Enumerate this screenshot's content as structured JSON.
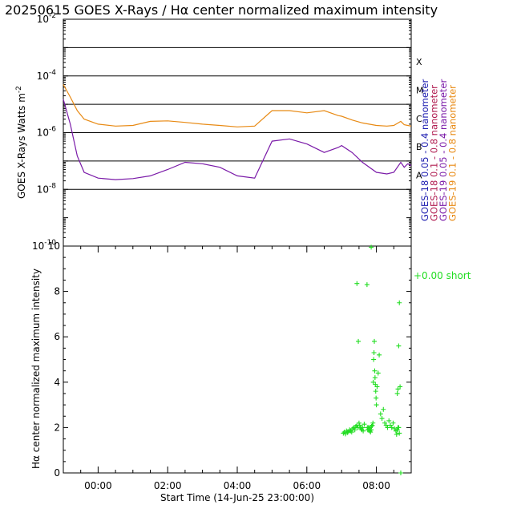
{
  "title": "20250615 GOES X-Rays / Hα center normalized maximum intensity",
  "chart_data": [
    {
      "type": "line",
      "name": "goes-xray",
      "ylabel": "GOES X-Rays Watts m",
      "ylabel_sup": "-2",
      "yscale": "log",
      "ylim": [
        1e-10,
        0.01
      ],
      "ytick_mantissa": "10",
      "ytick_exponents": [
        "-10",
        "-8",
        "-6",
        "-4",
        "-2"
      ],
      "xlim_hours_after_start": [
        0,
        10
      ],
      "flare_class_thresholds": [
        1e-08,
        1e-07,
        1e-06,
        1e-05,
        0.0001,
        0.001
      ],
      "flare_classes": [
        {
          "label": "A",
          "value": 3.16e-08
        },
        {
          "label": "B",
          "value": 3.16e-07
        },
        {
          "label": "C",
          "value": 3.16e-06
        },
        {
          "label": "M",
          "value": 3.16e-05
        },
        {
          "label": "X",
          "value": 0.000316
        }
      ],
      "legend": [
        {
          "label": "GOES-18  0.05 - 0.4 nanometer",
          "color": "#1c1cb0"
        },
        {
          "label": "GOES-18  0.1  - 0.8 nanometer",
          "color": "#b01c50"
        },
        {
          "label": "GOES-19  0.05 - 0.4 nanometer",
          "color": "#7a1aa8"
        },
        {
          "label": "GOES-19  0.1  - 0.8 nanometer",
          "color": "#e88a14"
        }
      ],
      "series": [
        {
          "name": "GOES-19 0.1-0.8 nm",
          "color": "#e88a14",
          "x": [
            0,
            0.2,
            0.4,
            0.6,
            1.0,
            1.5,
            2.0,
            2.5,
            3.0,
            3.5,
            4.0,
            4.5,
            5.0,
            5.5,
            6.0,
            6.5,
            7.0,
            7.5,
            7.9,
            8.0,
            8.3,
            8.6,
            9.0,
            9.3,
            9.5,
            9.7,
            9.8,
            9.9,
            10.0
          ],
          "y": [
            5e-05,
            1.8e-05,
            6e-06,
            3e-06,
            2e-06,
            1.7e-06,
            1.8e-06,
            2.5e-06,
            2.6e-06,
            2.3e-06,
            2e-06,
            1.8e-06,
            1.6e-06,
            1.7e-06,
            6e-06,
            6e-06,
            5e-06,
            6e-06,
            4e-06,
            3.8e-06,
            2.8e-06,
            2.2e-06,
            1.8e-06,
            1.7e-06,
            1.8e-06,
            2.5e-06,
            1.9e-06,
            1.8e-06,
            1.7e-06
          ]
        },
        {
          "name": "GOES-19 0.05-0.4 nm",
          "color": "#7a1aa8",
          "x": [
            0,
            0.2,
            0.4,
            0.6,
            1.0,
            1.5,
            2.0,
            2.5,
            3.0,
            3.5,
            4.0,
            4.5,
            5.0,
            5.5,
            6.0,
            6.5,
            7.0,
            7.5,
            7.9,
            8.0,
            8.3,
            8.6,
            9.0,
            9.3,
            9.5,
            9.7,
            9.8,
            9.9,
            10.0
          ],
          "y": [
            1.5e-05,
            2e-06,
            1.5e-07,
            4e-08,
            2.5e-08,
            2.2e-08,
            2.4e-08,
            3e-08,
            5e-08,
            9e-08,
            8e-08,
            6e-08,
            3e-08,
            2.5e-08,
            5e-07,
            6e-07,
            4e-07,
            2e-07,
            3e-07,
            3.5e-07,
            2e-07,
            9e-08,
            4e-08,
            3.5e-08,
            4e-08,
            9e-08,
            6e-08,
            8e-08,
            7e-08
          ]
        }
      ]
    },
    {
      "type": "scatter",
      "name": "halpha",
      "xlabel": "Start Time (14-Jun-25 23:00:00)",
      "ylabel": "Hα center normalized maximum intensity",
      "ylim": [
        0,
        10
      ],
      "yticks": [
        "0",
        "2",
        "4",
        "6",
        "8",
        "10"
      ],
      "xticks": [
        "00:00",
        "02:00",
        "04:00",
        "06:00",
        "08:00"
      ],
      "xtick_hours_after_start": [
        1,
        3,
        5,
        7,
        9
      ],
      "annotation": "+0.00 short",
      "marker_color": "#22dd22",
      "points_x": [
        8.05,
        8.08,
        8.11,
        8.14,
        8.17,
        8.2,
        8.23,
        8.26,
        8.29,
        8.32,
        8.35,
        8.38,
        8.41,
        8.44,
        8.47,
        8.5,
        8.52,
        8.54,
        8.56,
        8.58,
        8.6,
        8.62,
        8.65,
        8.44,
        8.48,
        8.73,
        8.75,
        8.77,
        8.79,
        8.81,
        8.83,
        8.85,
        8.74,
        8.78,
        8.82,
        8.86,
        8.88,
        8.9,
        8.91,
        8.92,
        8.93,
        8.94,
        8.95,
        8.96,
        8.97,
        8.98,
        8.99,
        9.0,
        9.02,
        9.05,
        9.08,
        9.12,
        9.16,
        9.2,
        9.24,
        9.28,
        9.32,
        9.36,
        9.4,
        9.44,
        9.48,
        9.52,
        9.56,
        9.58,
        9.6,
        9.62,
        9.64,
        9.66,
        9.68,
        9.6,
        9.62,
        9.64,
        9.66,
        9.7,
        8.85
      ],
      "points_y": [
        1.75,
        1.8,
        1.72,
        1.85,
        1.78,
        1.82,
        1.9,
        1.85,
        1.8,
        1.95,
        2.0,
        1.9,
        2.05,
        2.1,
        2.0,
        2.2,
        2.1,
        2.0,
        1.95,
        1.9,
        2.0,
        1.85,
        2.15,
        8.35,
        5.8,
        8.3,
        1.9,
        2.0,
        1.95,
        1.85,
        1.8,
        1.9,
        2.0,
        1.9,
        2.0,
        2.05,
        2.1,
        2.2,
        4.0,
        5.0,
        5.3,
        5.8,
        4.5,
        4.2,
        3.9,
        3.6,
        3.3,
        3.0,
        3.8,
        4.4,
        5.2,
        2.6,
        2.4,
        2.8,
        2.2,
        2.1,
        2.0,
        2.3,
        2.1,
        2.0,
        2.2,
        1.95,
        1.85,
        1.7,
        1.9,
        2.0,
        5.6,
        7.5,
        3.8,
        3.5,
        3.7,
        2.0,
        1.75,
        0.0,
        9.95
      ]
    }
  ]
}
